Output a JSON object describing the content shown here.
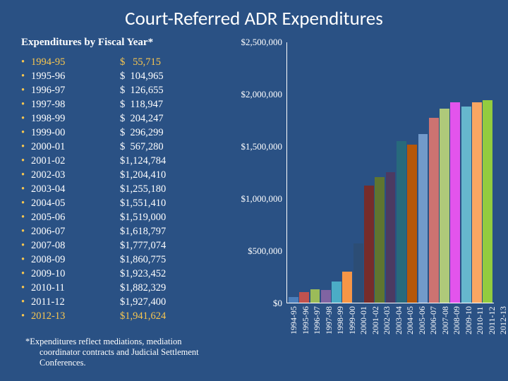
{
  "title": "Court-Referred ADR Expenditures",
  "subtitle": "Expenditures by Fiscal Year*",
  "footnote_l1": "*Expenditures reflect mediations, mediation",
  "footnote_l2": "coordinator contracts and Judicial Settlement Conferences.",
  "rows": [
    {
      "year": "1994-95",
      "amount": "$   55,715",
      "value": 55715,
      "hl": true
    },
    {
      "year": "1995-96",
      "amount": "$  104,965",
      "value": 104965,
      "hl": false
    },
    {
      "year": "1996-97",
      "amount": "$  126,655",
      "value": 126655,
      "hl": false
    },
    {
      "year": "1997-98",
      "amount": "$  118,947",
      "value": 118947,
      "hl": false
    },
    {
      "year": "1998-99",
      "amount": "$  204,247",
      "value": 204247,
      "hl": false
    },
    {
      "year": "1999-00",
      "amount": "$  296,299",
      "value": 296299,
      "hl": false
    },
    {
      "year": "2000-01",
      "amount": "$  567,280",
      "value": 567280,
      "hl": false
    },
    {
      "year": "2001-02",
      "amount": "$1,124,784",
      "value": 1124784,
      "hl": false
    },
    {
      "year": "2002-03",
      "amount": "$1,204,410",
      "value": 1204410,
      "hl": false
    },
    {
      "year": "2003-04",
      "amount": "$1,255,180",
      "value": 1255180,
      "hl": false
    },
    {
      "year": "2004-05",
      "amount": "$1,551,410",
      "value": 1551410,
      "hl": false
    },
    {
      "year": "2005-06",
      "amount": "$1,519,000",
      "value": 1519000,
      "hl": false
    },
    {
      "year": "2006-07",
      "amount": "$1,618,797",
      "value": 1618797,
      "hl": false
    },
    {
      "year": "2007-08",
      "amount": "$1,777,074",
      "value": 1777074,
      "hl": false
    },
    {
      "year": "2008-09",
      "amount": "$1,860,775",
      "value": 1860775,
      "hl": false
    },
    {
      "year": "2009-10",
      "amount": "$1,923,452",
      "value": 1923452,
      "hl": false
    },
    {
      "year": "2010-11",
      "amount": "$1,882,329",
      "value": 1882329,
      "hl": false
    },
    {
      "year": "2011-12",
      "amount": "$1,927,400",
      "value": 1927400,
      "hl": false
    },
    {
      "year": "2012-13",
      "amount": "$1,941,624",
      "value": 1941624,
      "hl": true
    }
  ],
  "chart": {
    "type": "bar",
    "ymax": 2500000,
    "yticks": [
      {
        "v": 0,
        "label": "$0"
      },
      {
        "v": 500000,
        "label": "$500,000"
      },
      {
        "v": 1000000,
        "label": "$1,000,000"
      },
      {
        "v": 1500000,
        "label": "$1,500,000"
      },
      {
        "v": 2000000,
        "label": "$2,000,000"
      },
      {
        "v": 2500000,
        "label": "$2,500,000"
      }
    ],
    "bar_colors": [
      "#4a7ebb",
      "#c0524e",
      "#9bbb59",
      "#8064a2",
      "#4bacc6",
      "#f79646",
      "#2c4d75",
      "#772c2a",
      "#5f7530",
      "#4c3a62",
      "#276a7c",
      "#b65708",
      "#729aca",
      "#cd7371",
      "#afc97a",
      "#e354ec",
      "#66b7cd",
      "#f9a662",
      "#93cc3f"
    ],
    "axis_color": "#ffffff",
    "background_color": "#2a5184",
    "text_color": "#ffffff",
    "highlight_color": "#f9c74f",
    "bullet_color": "#f9c74f",
    "title_fontsize": 27,
    "list_fontsize": 14.5,
    "axis_fontsize": 13
  }
}
